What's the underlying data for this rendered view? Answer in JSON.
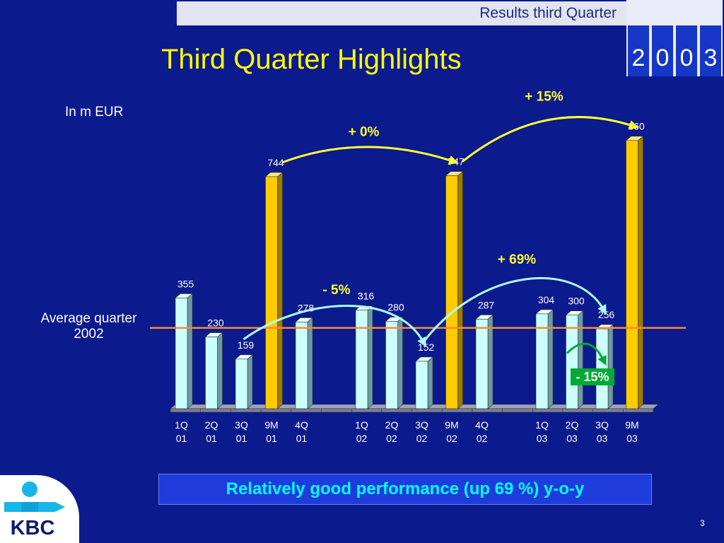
{
  "header": {
    "section": "Results third Quarter",
    "year_digits": [
      "2",
      "0",
      "0",
      "3"
    ]
  },
  "title": "Third Quarter Highlights",
  "unit_label": "In m EUR",
  "avg_label": "Average quarter 2002",
  "banner": "Relatively good performance (up 69 %) y-o-y",
  "page_number": "3",
  "logo": {
    "text": "KBC"
  },
  "colors": {
    "background": "#0b1a8c",
    "title": "#ffff00",
    "quarter_bar": "#ccffff",
    "ytd_bar": "#ffcc00",
    "avg_line": "#ff8833",
    "arrow_yellow": "#ffff33",
    "arrow_cyan": "#aaffff",
    "arrow_green": "#00aa33",
    "banner_text": "#00ffff"
  },
  "chart_data": {
    "type": "bar",
    "categories": [
      "1Q 01",
      "2Q 01",
      "3Q 01",
      "9M 01",
      "4Q 01",
      "1Q 02",
      "2Q 02",
      "3Q 02",
      "9M 02",
      "4Q 02",
      "1Q 03",
      "2Q 03",
      "3Q 03",
      "9M 03"
    ],
    "groups": [
      [
        {
          "l1": "1Q",
          "l2": "01",
          "v": 355,
          "t": "q"
        },
        {
          "l1": "2Q",
          "l2": "01",
          "v": 230,
          "t": "q"
        },
        {
          "l1": "3Q",
          "l2": "01",
          "v": 159,
          "t": "q"
        },
        {
          "l1": "9M",
          "l2": "01",
          "v": 744,
          "t": "ytd"
        },
        {
          "l1": "4Q",
          "l2": "01",
          "v": 278,
          "t": "q"
        }
      ],
      [
        {
          "l1": "1Q",
          "l2": "02",
          "v": 316,
          "t": "q"
        },
        {
          "l1": "2Q",
          "l2": "02",
          "v": 280,
          "t": "q"
        },
        {
          "l1": "3Q",
          "l2": "02",
          "v": 152,
          "t": "q"
        },
        {
          "l1": "9M",
          "l2": "02",
          "v": 747,
          "t": "ytd"
        },
        {
          "l1": "4Q",
          "l2": "02",
          "v": 287,
          "t": "q"
        }
      ],
      [
        {
          "l1": "1Q",
          "l2": "03",
          "v": 304,
          "t": "q"
        },
        {
          "l1": "2Q",
          "l2": "03",
          "v": 300,
          "t": "q"
        },
        {
          "l1": "3Q",
          "l2": "03",
          "v": 256,
          "t": "q"
        },
        {
          "l1": "9M",
          "l2": "03",
          "v": 860,
          "t": "ytd"
        }
      ]
    ],
    "average_quarter_2002": 259,
    "ylim": [
      0,
      900
    ],
    "annotations": [
      {
        "text": "+ 0%",
        "from": "9M 01",
        "to": "9M 02",
        "color": "yellow"
      },
      {
        "text": "+ 15%",
        "from": "9M 02",
        "to": "9M 03",
        "color": "yellow"
      },
      {
        "text": "- 5%",
        "from": "3Q 01",
        "to": "3Q 02",
        "color": "cyan"
      },
      {
        "text": "+ 69%",
        "from": "3Q 02",
        "to": "3Q 03",
        "color": "cyan"
      },
      {
        "text": "- 15%",
        "from": "2Q 03",
        "to": "3Q 03",
        "color": "green"
      }
    ]
  }
}
